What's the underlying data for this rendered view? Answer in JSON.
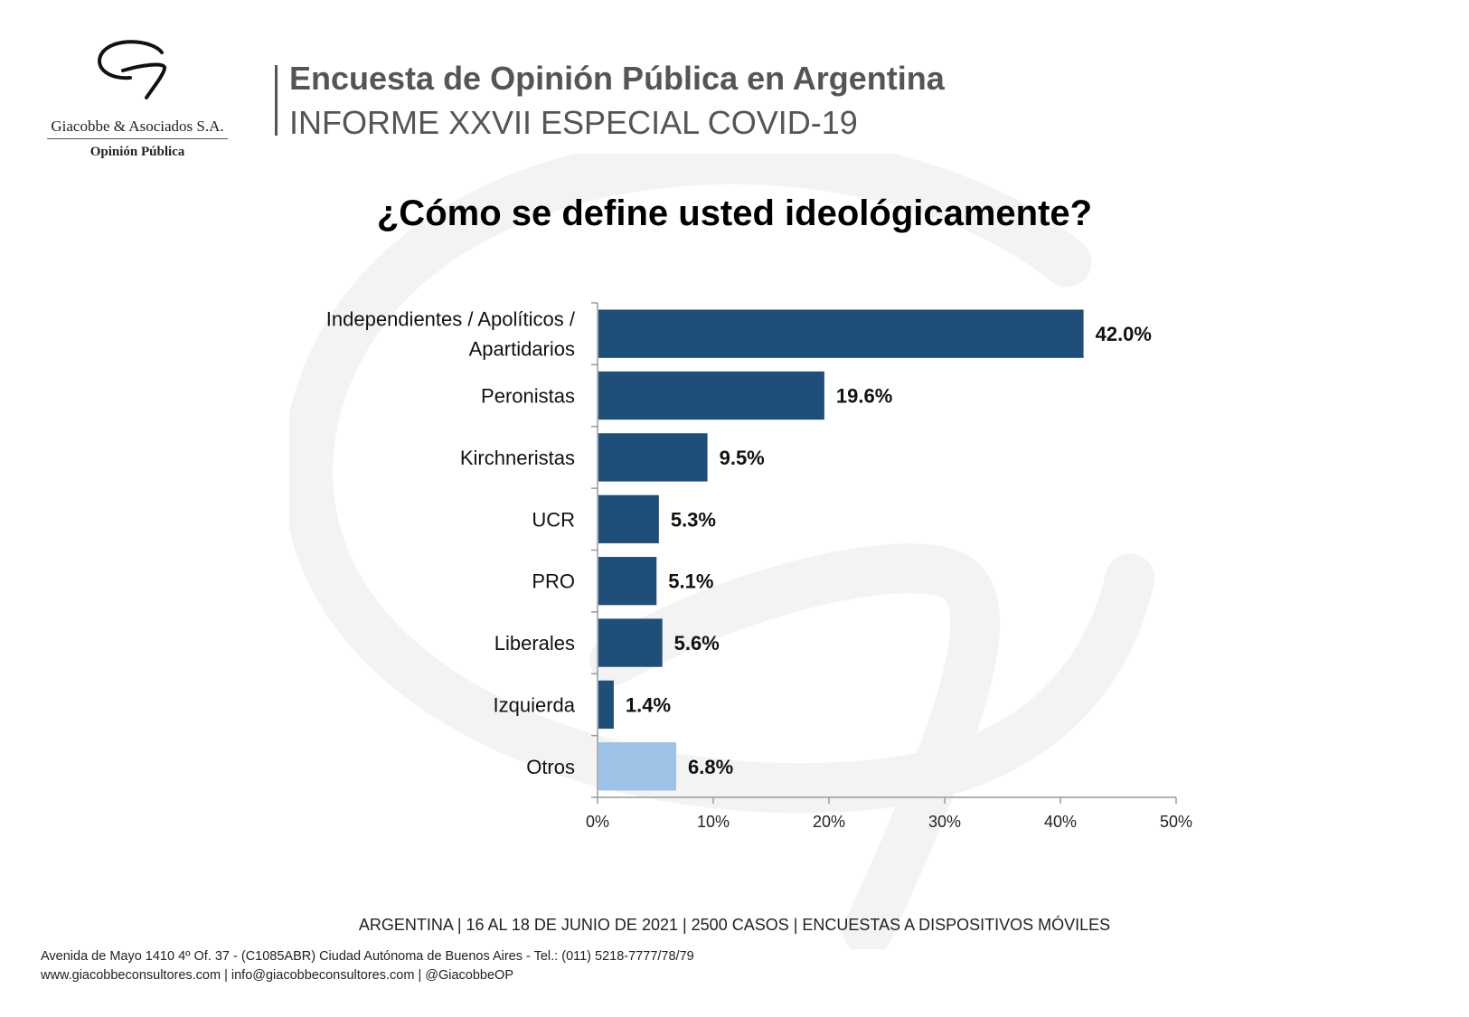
{
  "logo": {
    "company": "Giacobbe & Asociados S.A.",
    "sub": "Opinión Pública"
  },
  "header": {
    "title": "Encuesta de Opinión Pública en Argentina",
    "subtitle": "INFORME XXVII ESPECIAL COVID-19"
  },
  "colors": {
    "bar_main": "#1f4e79",
    "bar_other": "#9dc3e6",
    "header_text": "#555555",
    "watermark": "#f2f2f2"
  },
  "chart_data": {
    "type": "bar",
    "orientation": "horizontal",
    "title": "¿Cómo se define usted ideológicamente?",
    "categories": [
      "Independientes / Apolíticos / Apartidarios",
      "Peronistas",
      "Kirchneristas",
      "UCR",
      "PRO",
      "Liberales",
      "Izquierda",
      "Otros"
    ],
    "values": [
      42.0,
      19.6,
      9.5,
      5.3,
      5.1,
      5.6,
      1.4,
      6.8
    ],
    "value_labels": [
      "42.0%",
      "19.6%",
      "9.5%",
      "5.3%",
      "5.1%",
      "5.6%",
      "1.4%",
      "6.8%"
    ],
    "bar_colors": [
      "#1f4e79",
      "#1f4e79",
      "#1f4e79",
      "#1f4e79",
      "#1f4e79",
      "#1f4e79",
      "#1f4e79",
      "#9dc3e6"
    ],
    "xlim": [
      0,
      50
    ],
    "x_ticks": [
      0,
      10,
      20,
      30,
      40,
      50
    ],
    "x_tick_labels": [
      "0%",
      "10%",
      "20%",
      "30%",
      "40%",
      "50%"
    ],
    "grid": false,
    "legend": "none"
  },
  "footer": {
    "info": "ARGENTINA | 16 AL 18 DE JUNIO DE 2021 | 2500 CASOS | ENCUESTAS A DISPOSITIVOS MÓVILES",
    "address": "Avenida de Mayo 1410 4º Of. 37 - (C1085ABR) Ciudad Autónoma de Buenos Aires - Tel.: (011) 5218-7777/78/79",
    "web": "www.giacobbeconsultores.com | info@giacobbeconsultores.com | @GiacobbeOP"
  }
}
